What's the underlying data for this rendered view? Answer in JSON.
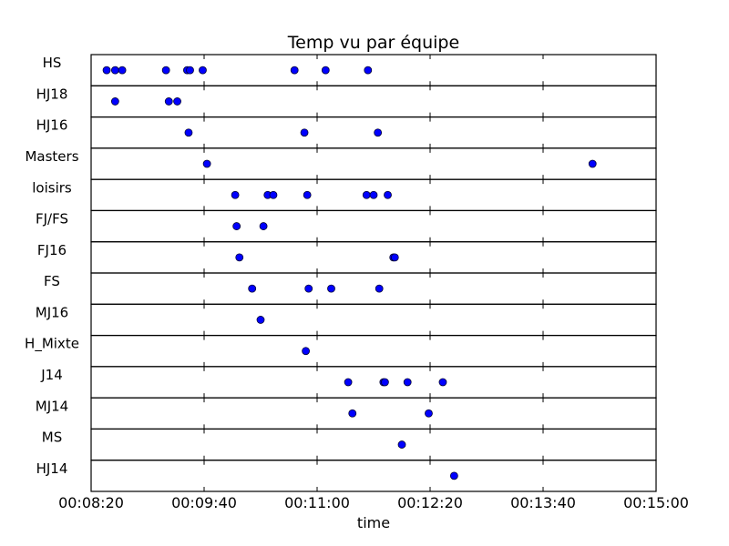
{
  "chart_data": {
    "type": "scatter",
    "title": "Temp vu par équipe",
    "xlabel": "time",
    "ylabel": "",
    "x_ticks": [
      "00:08:20",
      "00:09:40",
      "00:11:00",
      "00:12:20",
      "00:13:40",
      "00:15:00"
    ],
    "xlim": [
      "00:08:20",
      "00:15:00"
    ],
    "rows": [
      {
        "name": "HS",
        "times": [
          "00:08:31",
          "00:08:37",
          "00:08:42",
          "00:09:13",
          "00:09:28",
          "00:09:30",
          "00:09:39",
          "00:10:44",
          "00:11:06",
          "00:11:36"
        ]
      },
      {
        "name": "HJ18",
        "times": [
          "00:08:37",
          "00:09:15",
          "00:09:21"
        ]
      },
      {
        "name": "HJ16",
        "times": [
          "00:09:29",
          "00:10:51",
          "00:11:43"
        ]
      },
      {
        "name": "Masters",
        "times": [
          "00:09:42",
          "00:14:15"
        ]
      },
      {
        "name": "loisirs",
        "times": [
          "00:10:02",
          "00:10:25",
          "00:10:29",
          "00:10:53",
          "00:11:35",
          "00:11:40",
          "00:11:50"
        ]
      },
      {
        "name": "FJ/FS",
        "times": [
          "00:10:03",
          "00:10:22"
        ]
      },
      {
        "name": "FJ16",
        "times": [
          "00:10:05",
          "00:11:54",
          "00:11:55"
        ]
      },
      {
        "name": "FS",
        "times": [
          "00:10:14",
          "00:10:54",
          "00:11:10",
          "00:11:44"
        ]
      },
      {
        "name": "MJ16",
        "times": [
          "00:10:20"
        ]
      },
      {
        "name": "H_Mixte",
        "times": [
          "00:10:52"
        ]
      },
      {
        "name": "J14",
        "times": [
          "00:11:22",
          "00:11:47",
          "00:11:48",
          "00:12:04",
          "00:12:29"
        ]
      },
      {
        "name": "MJ14",
        "times": [
          "00:11:25",
          "00:12:19"
        ]
      },
      {
        "name": "MS",
        "times": [
          "00:12:00"
        ]
      },
      {
        "name": "HJ14",
        "times": [
          "00:12:37"
        ]
      }
    ],
    "marker_color": "#0000ff",
    "grid": false
  }
}
